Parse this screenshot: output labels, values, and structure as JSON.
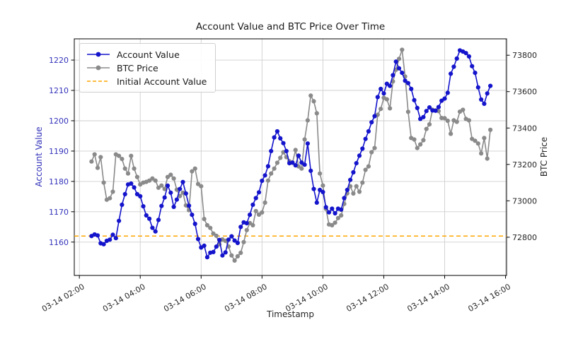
{
  "title": "Account Value and BTC Price Over Time",
  "colors": {
    "account_value": "#1414cc",
    "btc_price": "#8a8a8a",
    "initial_value": "#ffa500",
    "grid": "#cfcfcf",
    "spine": "#000000",
    "left_axis_text": "#3333bb",
    "right_axis_text": "#262626",
    "x_axis_text": "#262626"
  },
  "axes": {
    "x": {
      "label": "Timestamp",
      "tick_labels": [
        "03-14 02:00",
        "03-14 04:00",
        "03-14 06:00",
        "03-14 08:00",
        "03-14 10:00",
        "03-14 12:00",
        "03-14 14:00",
        "03-14 16:00"
      ],
      "tick_minutes": [
        120,
        240,
        360,
        480,
        600,
        720,
        840,
        960
      ],
      "lim_minutes": [
        110,
        962
      ]
    },
    "y_left": {
      "label": "Account Value",
      "ticks": [
        1160,
        1170,
        1180,
        1190,
        1200,
        1210,
        1220
      ],
      "lim": [
        1149,
        1227
      ]
    },
    "y_right": {
      "label": "BTC Price",
      "ticks": [
        72800,
        73000,
        73200,
        73400,
        73600,
        73800
      ],
      "lim": [
        72590,
        73890
      ]
    }
  },
  "legend": {
    "items": [
      {
        "label": "Account Value",
        "color": "#1414cc",
        "marker": true,
        "dash": false
      },
      {
        "label": "BTC Price",
        "color": "#8a8a8a",
        "marker": true,
        "dash": false
      },
      {
        "label": "Initial Account Value",
        "color": "#ffa500",
        "marker": false,
        "dash": true
      }
    ]
  },
  "chart_data": {
    "type": "line",
    "title": "Account Value and BTC Price Over Time",
    "xlabel": "Timestamp",
    "ylabel_left": "Account Value",
    "ylabel_right": "BTC Price",
    "x_date": "03-14",
    "x_start_minute": 144,
    "x_step_minutes": 6,
    "n_points": 132,
    "ylim_left": [
      1149,
      1227
    ],
    "ylim_right": [
      72590,
      73890
    ],
    "grid": true,
    "legend_position": "upper left",
    "series": [
      {
        "name": "Account Value",
        "axis": "left",
        "color": "#1414cc",
        "marker": "circle",
        "values": [
          1162.0,
          1162.5,
          1162.2,
          1159.6,
          1159.3,
          1160.4,
          1160.8,
          1162.4,
          1161.3,
          1167.0,
          1172.3,
          1175.8,
          1179.0,
          1179.3,
          1178.0,
          1175.8,
          1175.1,
          1171.8,
          1168.8,
          1167.7,
          1164.7,
          1163.5,
          1167.3,
          1171.9,
          1174.7,
          1178.6,
          1176.3,
          1171.6,
          1174.0,
          1177.5,
          1179.8,
          1176.0,
          1172.0,
          1169.0,
          1166.0,
          1161.0,
          1158.2,
          1158.8,
          1155.0,
          1156.5,
          1156.7,
          1158.5,
          1160.7,
          1155.6,
          1156.6,
          1160.8,
          1161.9,
          1160.5,
          1159.7,
          1165.0,
          1166.5,
          1166.2,
          1169.0,
          1172.3,
          1174.5,
          1176.4,
          1180.2,
          1182.0,
          1185.0,
          1190.0,
          1194.5,
          1196.5,
          1194.2,
          1192.6,
          1190.0,
          1186.0,
          1186.2,
          1185.3,
          1188.5,
          1186.2,
          1185.5,
          1192.5,
          1183.5,
          1177.5,
          1173.0,
          1177.2,
          1176.5,
          1171.5,
          1169.8,
          1171.0,
          1169.5,
          1171.0,
          1170.7,
          1174.5,
          1177.2,
          1180.5,
          1183.0,
          1186.0,
          1188.5,
          1190.8,
          1194.0,
          1196.5,
          1199.5,
          1201.5,
          1207.8,
          1210.5,
          1209.0,
          1212.2,
          1211.5,
          1215.0,
          1219.5,
          1217.3,
          1215.8,
          1213.2,
          1212.4,
          1210.5,
          1206.8,
          1204.2,
          1200.6,
          1201.2,
          1203.2,
          1204.4,
          1203.4,
          1203.3,
          1204.5,
          1206.6,
          1207.3,
          1209.2,
          1215.5,
          1217.8,
          1220.5,
          1223.2,
          1222.8,
          1222.3,
          1221.2,
          1218.0,
          1215.8,
          1211.0,
          1207.0,
          1205.6,
          1209.0,
          1211.5
        ]
      },
      {
        "name": "BTC Price",
        "axis": "right",
        "color": "#8a8a8a",
        "marker": "circle",
        "values": [
          73216,
          73255,
          73181,
          73240,
          73100,
          73006,
          73014,
          73050,
          73255,
          73247,
          73230,
          73177,
          73150,
          73247,
          73177,
          73131,
          73090,
          73100,
          73104,
          73111,
          73123,
          73111,
          73072,
          73084,
          73065,
          73131,
          73143,
          73123,
          73061,
          73026,
          73045,
          72975,
          72948,
          73162,
          73177,
          73092,
          73080,
          72900,
          72866,
          72851,
          72820,
          72808,
          72761,
          72788,
          72780,
          72749,
          72700,
          72672,
          72695,
          72714,
          72773,
          72839,
          72878,
          72866,
          72944,
          72924,
          72936,
          72990,
          73111,
          73150,
          73177,
          73209,
          73236,
          73267,
          73240,
          73217,
          73209,
          73279,
          73189,
          73177,
          73337,
          73442,
          73578,
          73547,
          73481,
          73150,
          73084,
          72956,
          72870,
          72866,
          72880,
          72905,
          72920,
          72983,
          73041,
          73080,
          73040,
          73080,
          73050,
          73100,
          73170,
          73189,
          73267,
          73290,
          73473,
          73505,
          73566,
          73558,
          73508,
          73656,
          73720,
          73780,
          73830,
          73683,
          73489,
          73345,
          73337,
          73290,
          73310,
          73333,
          73395,
          73420,
          73500,
          73497,
          73493,
          73455,
          73454,
          73440,
          73368,
          73442,
          73434,
          73490,
          73500,
          73450,
          73442,
          73340,
          73330,
          73315,
          73260,
          73345,
          73232,
          73390
        ]
      },
      {
        "name": "Initial Account Value",
        "axis": "left",
        "color": "#ffa500",
        "style": "dashed",
        "value": 1162
      }
    ]
  }
}
